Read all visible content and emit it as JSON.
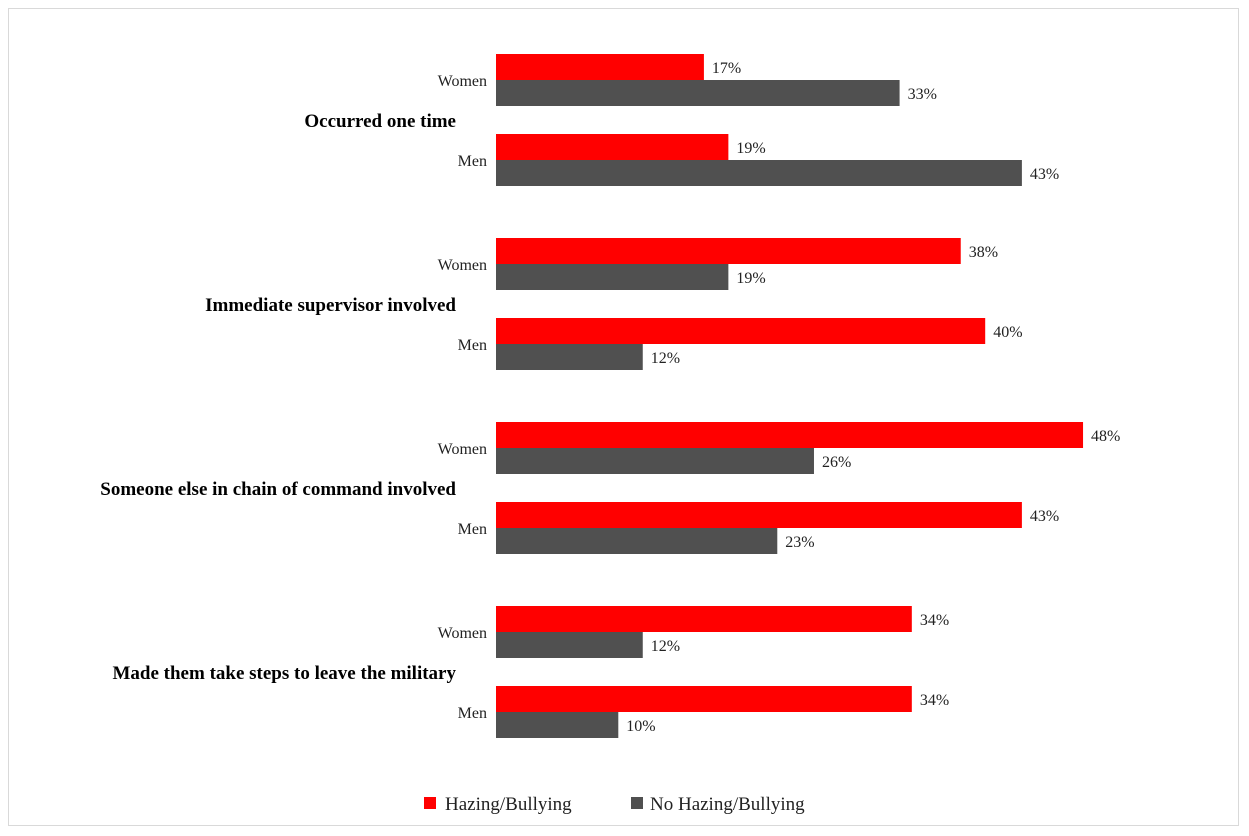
{
  "chart_data": {
    "type": "bar",
    "orientation": "horizontal",
    "groups": [
      {
        "label": "Occurred one time",
        "categories": [
          {
            "label": "Women",
            "values": [
              17,
              33
            ],
            "value_labels": [
              "17%",
              "33%"
            ]
          },
          {
            "label": "Men",
            "values": [
              19,
              43
            ],
            "value_labels": [
              "19%",
              "43%"
            ]
          }
        ]
      },
      {
        "label": "Immediate supervisor involved",
        "categories": [
          {
            "label": "Women",
            "values": [
              38,
              19
            ],
            "value_labels": [
              "38%",
              "19%"
            ]
          },
          {
            "label": "Men",
            "values": [
              40,
              12
            ],
            "value_labels": [
              "40%",
              "12%"
            ]
          }
        ]
      },
      {
        "label": "Someone else in chain of command involved",
        "categories": [
          {
            "label": "Women",
            "values": [
              48,
              26
            ],
            "value_labels": [
              "48%",
              "26%"
            ]
          },
          {
            "label": "Men",
            "values": [
              43,
              23
            ],
            "value_labels": [
              "43%",
              "23%"
            ]
          }
        ]
      },
      {
        "label": "Made them take steps to leave the military",
        "categories": [
          {
            "label": "Women",
            "values": [
              34,
              12
            ],
            "value_labels": [
              "34%",
              "12%"
            ]
          },
          {
            "label": "Men",
            "values": [
              34,
              10
            ],
            "value_labels": [
              "34%",
              "10%"
            ]
          }
        ]
      }
    ],
    "series": [
      {
        "name": "Hazing/Bullying",
        "color": "#ff0000"
      },
      {
        "name": "No Hazing/Bullying",
        "color": "#505050"
      }
    ],
    "xlim": [
      0,
      50
    ],
    "grid": false,
    "legend": "bottom"
  }
}
